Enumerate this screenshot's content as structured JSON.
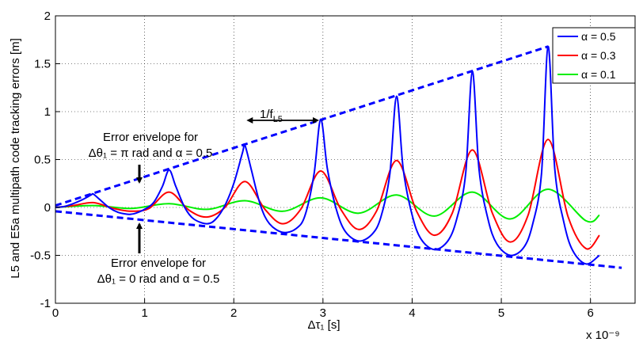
{
  "chart_data": {
    "type": "line",
    "xlabel": "Δτ₁ [s]",
    "ylabel": "L5 and E5a multipath code tracking errors [m]",
    "x_multiplier": "x 10⁻⁹",
    "xlim": [
      0,
      6.5
    ],
    "ylim": [
      -1,
      2
    ],
    "x_ticks": [
      "0",
      "1",
      "2",
      "3",
      "4",
      "5",
      "6"
    ],
    "y_ticks": [
      "-1",
      "-0.5",
      "0",
      "0.5",
      "1",
      "1.5",
      "2"
    ],
    "grid": true,
    "legend_position": "top-right",
    "series": [
      {
        "name": "α = 0.5",
        "color": "#0000ff",
        "amplitude": 0.58,
        "period": 0.85,
        "x": [
          0.0,
          0.1,
          0.2,
          0.3,
          0.4,
          0.425,
          0.5,
          0.6,
          0.7,
          0.8,
          0.85,
          0.9,
          1.0,
          1.1,
          1.2,
          1.275,
          1.35,
          1.45,
          1.55,
          1.7,
          1.8,
          1.9,
          2.0,
          2.1,
          2.125,
          2.2,
          2.3,
          2.4,
          2.55,
          2.7,
          2.8,
          2.9,
          2.975,
          3.05,
          3.15,
          3.25,
          3.4,
          3.55,
          3.65,
          3.75,
          3.825,
          3.9,
          4.0,
          4.1,
          4.25,
          4.4,
          4.5,
          4.6,
          4.675,
          4.75,
          4.85,
          4.95,
          5.1,
          5.25,
          5.35,
          5.45,
          5.525,
          5.6,
          5.7,
          5.8,
          5.95,
          6.1
        ],
        "y": [
          0.0,
          0.01,
          0.04,
          0.08,
          0.13,
          0.14,
          0.08,
          0.0,
          -0.05,
          -0.07,
          -0.07,
          -0.06,
          -0.02,
          0.05,
          0.22,
          0.39,
          0.22,
          0.0,
          -0.12,
          -0.17,
          -0.12,
          0.02,
          0.25,
          0.58,
          0.65,
          0.38,
          0.02,
          -0.17,
          -0.26,
          -0.22,
          -0.08,
          0.35,
          0.92,
          0.4,
          -0.02,
          -0.25,
          -0.35,
          -0.28,
          -0.1,
          0.35,
          1.16,
          0.4,
          -0.08,
          -0.33,
          -0.44,
          -0.35,
          -0.12,
          0.35,
          1.42,
          0.4,
          -0.12,
          -0.38,
          -0.5,
          -0.42,
          -0.18,
          0.35,
          1.68,
          0.4,
          -0.15,
          -0.45,
          -0.59,
          -0.5
        ]
      },
      {
        "name": "α = 0.3",
        "color": "#ff0000",
        "amplitude": 0.3,
        "period": 0.85,
        "x": [
          0.0,
          0.2,
          0.425,
          0.65,
          0.85,
          1.05,
          1.275,
          1.5,
          1.7,
          1.9,
          2.125,
          2.35,
          2.55,
          2.75,
          2.975,
          3.2,
          3.4,
          3.6,
          3.825,
          4.05,
          4.25,
          4.45,
          4.675,
          4.9,
          5.1,
          5.3,
          5.525,
          5.75,
          5.95,
          6.1
        ],
        "y": [
          0.0,
          0.02,
          0.05,
          -0.01,
          -0.04,
          -0.01,
          0.16,
          -0.03,
          -0.1,
          0.0,
          0.27,
          -0.02,
          -0.17,
          -0.02,
          0.38,
          -0.02,
          -0.23,
          -0.04,
          0.49,
          -0.04,
          -0.29,
          -0.06,
          0.6,
          -0.06,
          -0.36,
          -0.08,
          0.71,
          -0.1,
          -0.43,
          -0.29
        ]
      },
      {
        "name": "α = 0.1",
        "color": "#00ee00",
        "amplitude": 0.0,
        "period": 0.85,
        "x": [
          0.0,
          0.425,
          0.85,
          1.275,
          1.7,
          2.125,
          2.55,
          2.975,
          3.4,
          3.825,
          4.25,
          4.675,
          5.1,
          5.525,
          5.95,
          6.1
        ],
        "y": [
          0.0,
          0.02,
          -0.01,
          0.04,
          -0.02,
          0.07,
          -0.04,
          0.1,
          -0.06,
          0.13,
          -0.09,
          0.16,
          -0.12,
          0.19,
          -0.14,
          -0.08
        ]
      }
    ],
    "envelopes": [
      {
        "name": "upper",
        "color": "#0000ff",
        "x": [
          0,
          5.525
        ],
        "y": [
          0.02,
          1.68
        ]
      },
      {
        "name": "lower",
        "color": "#0000ff",
        "x": [
          0,
          6.35
        ],
        "y": [
          -0.04,
          -0.63
        ]
      }
    ],
    "annotations": {
      "upper_line1": "Error envelope for",
      "upper_line2": "Δθ₁ = π rad and α = 0.5",
      "lower_line1": "Error envelope for",
      "lower_line2": "Δθ₁ = 0 rad and α = 0.5",
      "period_label": "1/f",
      "period_sub": "L5"
    }
  }
}
